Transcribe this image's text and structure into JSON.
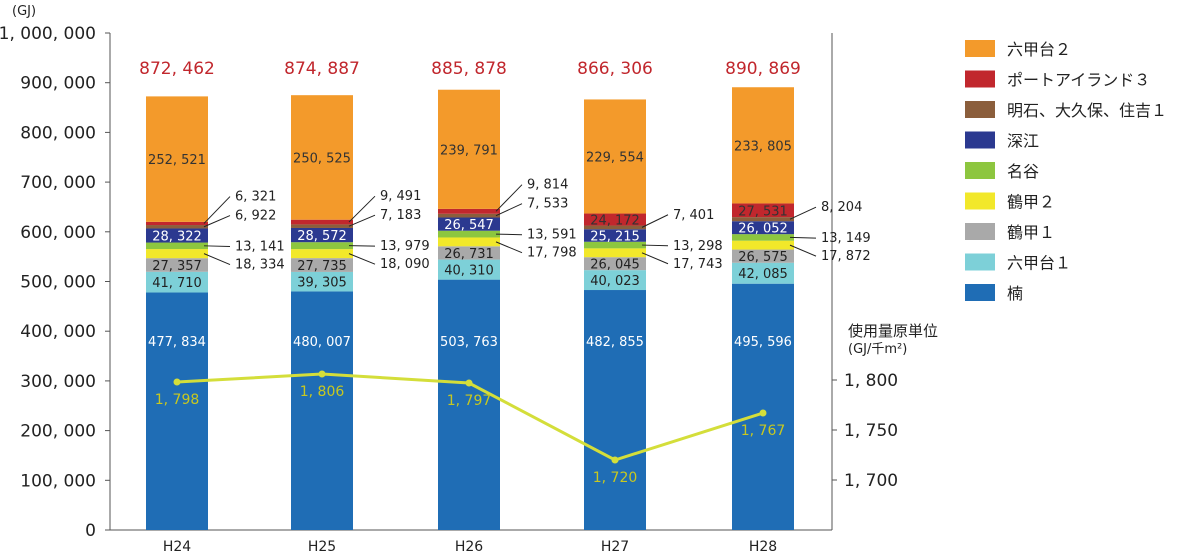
{
  "chart_data": {
    "type": "bar",
    "stacked": true,
    "categories": [
      "H24",
      "H25",
      "H26",
      "H27",
      "H28"
    ],
    "y_unit": "(GJ)",
    "ylim": [
      0,
      1000000
    ],
    "y_ticks": [
      "0",
      "100, 000",
      "200, 000",
      "300, 000",
      "400, 000",
      "500, 000",
      "600, 000",
      "700, 000",
      "800, 000",
      "900, 000",
      "1, 000, 000"
    ],
    "series": [
      {
        "name": "楠",
        "color": "#1f6db5",
        "values": [
          477834,
          480007,
          503763,
          482855,
          495596
        ],
        "labels": [
          "477, 834",
          "480, 007",
          "503, 763",
          "482, 855",
          "495, 596"
        ]
      },
      {
        "name": "六甲台１",
        "color": "#7dd0d8",
        "values": [
          41710,
          39305,
          40310,
          40023,
          42085
        ],
        "labels": [
          "41, 710",
          "39, 305",
          "40, 310",
          "40, 023",
          "42, 085"
        ]
      },
      {
        "name": "鶴甲１",
        "color": "#a9a9a9",
        "values": [
          27357,
          27735,
          26731,
          26045,
          26575
        ],
        "labels": [
          "27, 357",
          "27, 735",
          "26, 731",
          "26, 045",
          "26, 575"
        ]
      },
      {
        "name": "鶴甲２",
        "color": "#f2e82a",
        "values": [
          18334,
          18090,
          17798,
          17743,
          17872
        ],
        "labels": [
          "18, 334",
          "18, 090",
          "17, 798",
          "17, 743",
          "17, 872"
        ]
      },
      {
        "name": "名谷",
        "color": "#8dc63f",
        "values": [
          13141,
          13979,
          13591,
          13298,
          13149
        ],
        "labels": [
          "13, 141",
          "13, 979",
          "13, 591",
          "13, 298",
          "13, 149"
        ]
      },
      {
        "name": "深江",
        "color": "#2b3990",
        "values": [
          28322,
          28572,
          26547,
          25215,
          26052
        ],
        "labels": [
          "28, 322",
          "28, 572",
          "26, 547",
          "25, 215",
          "26, 052"
        ]
      },
      {
        "name": "明石、大久保、住吉１",
        "color": "#8b5e3c",
        "values": [
          6922,
          7183,
          7533,
          7401,
          8204
        ],
        "labels": [
          "6, 922",
          "7, 183",
          "7, 533",
          "7, 401",
          "8, 204"
        ]
      },
      {
        "name": "ポートアイランド３",
        "color": "#c1272d",
        "values": [
          6321,
          9491,
          9814,
          24172,
          27531
        ],
        "labels": [
          "6, 321",
          "9, 491",
          "9, 814",
          "24, 172",
          "27, 531"
        ]
      },
      {
        "name": "六甲台２",
        "color": "#f39a2b",
        "values": [
          252521,
          250525,
          239791,
          229554,
          233805
        ],
        "labels": [
          "252, 521",
          "250, 525",
          "239, 791",
          "229, 554",
          "233, 805"
        ]
      }
    ],
    "totals": [
      872462,
      874887,
      885878,
      866306,
      890869
    ],
    "total_labels": [
      "872, 462",
      "874, 887",
      "885, 878",
      "866, 306",
      "890, 869"
    ],
    "total_color": "#c1272d",
    "line": {
      "name": "使用量原単位",
      "unit": "(GJ/千m²)",
      "color": "#d4de3a",
      "label_color": "#c8c820",
      "values": [
        1798,
        1806,
        1797,
        1720,
        1767
      ],
      "labels": [
        "1, 798",
        "1, 806",
        "1, 797",
        "1, 720",
        "1, 767"
      ],
      "ylim_right": [
        1650,
        1850
      ],
      "y_ticks_right": [
        {
          "value": 1800,
          "label": "1, 800"
        },
        {
          "value": 1750,
          "label": "1, 750"
        },
        {
          "value": 1700,
          "label": "1, 700"
        }
      ]
    },
    "legend": {
      "placement": "right",
      "order": [
        "六甲台２",
        "ポートアイランド３",
        "明石、大久保、住吉１",
        "深江",
        "名谷",
        "鶴甲２",
        "鶴甲１",
        "六甲台１",
        "楠"
      ]
    },
    "grid": false
  }
}
